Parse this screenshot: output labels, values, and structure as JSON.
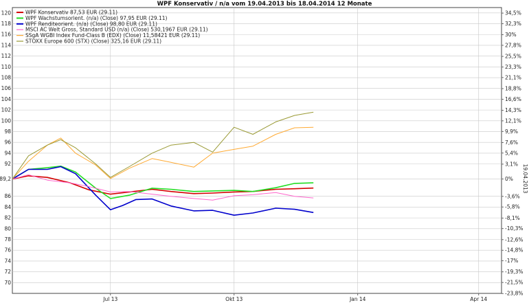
{
  "chart_data": {
    "type": "line",
    "title": "WPF Konservativ / n/a vom 19.04.2013 bis 18.04.2014 12 Monate",
    "side_label": "19.04.2013",
    "x_tick_labels": [
      "Jul 13",
      "Okt 13",
      "Jan 14",
      "Apr 14"
    ],
    "y_left_ticks": [
      "70",
      "72",
      "74",
      "76",
      "78",
      "80",
      "82",
      "84",
      "86",
      "89,2",
      "92",
      "94",
      "96",
      "98",
      "100",
      "102",
      "104",
      "106",
      "108",
      "110",
      "112",
      "114",
      "116",
      "118",
      "120"
    ],
    "y_left_range": [
      68,
      121
    ],
    "y_right_ticks": [
      "-23,8%",
      "-21,5%",
      "-19,3%",
      "-17%",
      "-14,8%",
      "-12,6%",
      "-10,3%",
      "-8,1%",
      "-5,8%",
      "-3,6%",
      "0%",
      "3,1%",
      "5,4%",
      "7,6%",
      "9,9%",
      "12,1%",
      "14,3%",
      "16,6%",
      "18,8%",
      "21,1%",
      "23,3%",
      "25,5%",
      "27,8%",
      "30%",
      "32,3%",
      "34,5%"
    ],
    "x_range": [
      "2013-04-19",
      "2014-04-18"
    ],
    "grid": true,
    "legend_position": "top-left",
    "series": [
      {
        "name": "WPF Konservativ 87,53 EUR (29.11)",
        "color": "#d40000",
        "x": [
          "2013-04-19",
          "2013-05-01",
          "2013-05-15",
          "2013-06-01",
          "2013-06-15",
          "2013-07-01",
          "2013-07-15",
          "2013-08-01",
          "2013-08-15",
          "2013-09-01",
          "2013-09-15",
          "2013-10-01",
          "2013-10-15",
          "2013-11-01",
          "2013-11-15",
          "2013-11-29"
        ],
        "y": [
          89.2,
          89.8,
          89.5,
          88.5,
          87.2,
          86.4,
          86.8,
          87.3,
          86.9,
          86.5,
          86.6,
          86.8,
          86.9,
          87.3,
          87.4,
          87.53
        ]
      },
      {
        "name": "WPF Wachstumsorient. (n/a) (Close) 97,95 EUR (29.11)",
        "color": "#22dd22",
        "x": [
          "2013-04-19",
          "2013-05-01",
          "2013-05-15",
          "2013-05-25",
          "2013-06-05",
          "2013-06-20",
          "2013-07-01",
          "2013-07-15",
          "2013-08-01",
          "2013-08-15",
          "2013-09-01",
          "2013-09-15",
          "2013-10-01",
          "2013-10-15",
          "2013-11-01",
          "2013-11-15",
          "2013-11-29"
        ],
        "y": [
          89.2,
          91.0,
          91.3,
          91.6,
          90.5,
          87.5,
          85.6,
          86.2,
          87.5,
          87.3,
          86.9,
          87.0,
          87.1,
          86.9,
          87.6,
          88.4,
          88.5
        ]
      },
      {
        "name": "WPF Renditeorient. (n/a) (Close) 98,80 EUR (29.11)",
        "color": "#0000cc",
        "x": [
          "2013-04-19",
          "2013-05-01",
          "2013-05-15",
          "2013-05-25",
          "2013-06-05",
          "2013-06-20",
          "2013-07-01",
          "2013-07-10",
          "2013-07-20",
          "2013-08-01",
          "2013-08-15",
          "2013-09-01",
          "2013-09-15",
          "2013-10-01",
          "2013-10-15",
          "2013-11-01",
          "2013-11-15",
          "2013-11-29"
        ],
        "y": [
          89.2,
          91.0,
          91.0,
          91.5,
          90.2,
          86.2,
          83.5,
          84.3,
          85.4,
          85.5,
          84.2,
          83.3,
          83.4,
          82.5,
          82.9,
          83.8,
          83.6,
          83.0
        ]
      },
      {
        "name": "MSCI AC Welt Gross, Standard USD (n/a) (Close) 530,1967 EUR (29.11)",
        "color": "#ff66cc",
        "x": [
          "2013-04-19",
          "2013-05-01",
          "2013-05-15",
          "2013-06-01",
          "2013-06-15",
          "2013-07-01",
          "2013-07-15",
          "2013-08-01",
          "2013-08-15",
          "2013-09-01",
          "2013-09-15",
          "2013-10-01",
          "2013-10-15",
          "2013-11-01",
          "2013-11-15",
          "2013-11-29"
        ],
        "y": [
          89.2,
          90.0,
          89.0,
          88.5,
          87.8,
          86.8,
          86.9,
          86.4,
          86.0,
          85.6,
          85.3,
          86.1,
          86.3,
          86.7,
          86.0,
          85.7
        ]
      },
      {
        "name": "SSgA WGBI Index Fund-Class B (EDX) (Close) 11,58421 EUR (29.11)",
        "color": "#ffaa33",
        "x": [
          "2013-04-19",
          "2013-05-01",
          "2013-05-15",
          "2013-05-25",
          "2013-06-05",
          "2013-06-20",
          "2013-07-01",
          "2013-07-15",
          "2013-08-01",
          "2013-08-15",
          "2013-09-01",
          "2013-09-15",
          "2013-10-01",
          "2013-10-15",
          "2013-11-01",
          "2013-11-15",
          "2013-11-29"
        ],
        "y": [
          89.2,
          92.5,
          95.5,
          96.8,
          94.0,
          91.8,
          89.3,
          91.2,
          93.0,
          92.3,
          91.4,
          94.0,
          94.7,
          95.3,
          97.5,
          98.7,
          98.8
        ]
      },
      {
        "name": "STOXX Europe 600 (STX) (Close) 325,16 EUR (29.11)",
        "color": "#999933",
        "x": [
          "2013-04-19",
          "2013-05-01",
          "2013-05-15",
          "2013-05-25",
          "2013-06-05",
          "2013-06-20",
          "2013-07-01",
          "2013-07-15",
          "2013-08-01",
          "2013-08-15",
          "2013-09-01",
          "2013-09-15",
          "2013-10-01",
          "2013-10-15",
          "2013-11-01",
          "2013-11-15",
          "2013-11-29"
        ],
        "y": [
          89.2,
          93.5,
          95.5,
          96.5,
          95.0,
          92.0,
          89.5,
          91.5,
          94.0,
          95.5,
          96.0,
          94.2,
          98.8,
          97.5,
          99.8,
          101.0,
          101.6
        ]
      }
    ]
  }
}
